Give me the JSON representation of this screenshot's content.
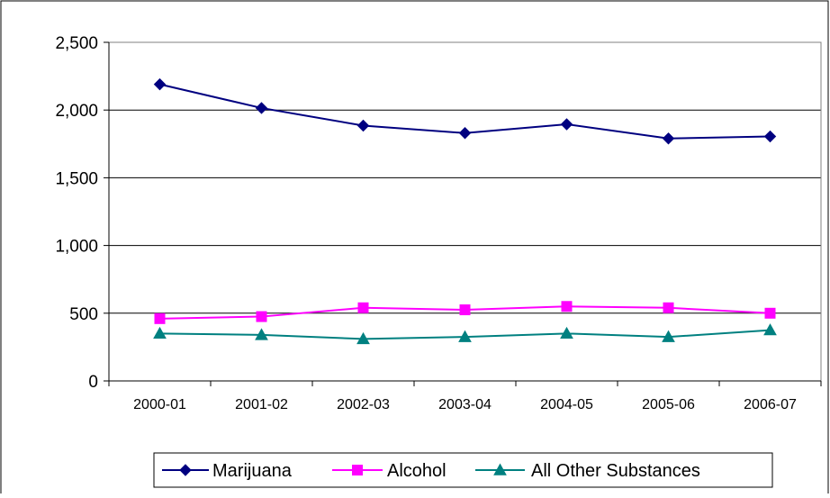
{
  "chart_data": {
    "type": "line",
    "title": "",
    "xlabel": "",
    "ylabel": "",
    "categories": [
      "2000-01",
      "2001-02",
      "2002-03",
      "2003-04",
      "2004-05",
      "2005-06",
      "2006-07"
    ],
    "ylim": [
      0,
      2500
    ],
    "yticks": [
      0,
      500,
      1000,
      1500,
      2000,
      2500
    ],
    "ytick_labels": [
      "0",
      "500",
      "1,000",
      "1,500",
      "2,000",
      "2,500"
    ],
    "grid": "horizontal",
    "legend_position": "bottom",
    "series": [
      {
        "name": "Marijuana",
        "values": [
          2190,
          2015,
          1885,
          1830,
          1895,
          1790,
          1805
        ],
        "color": "#000080",
        "marker": "diamond"
      },
      {
        "name": "Alcohol",
        "values": [
          460,
          475,
          540,
          525,
          550,
          540,
          500
        ],
        "color": "#FF00FF",
        "marker": "square"
      },
      {
        "name": "All Other Substances",
        "values": [
          350,
          340,
          310,
          325,
          350,
          325,
          375
        ],
        "color": "#008080",
        "marker": "triangle"
      }
    ]
  }
}
